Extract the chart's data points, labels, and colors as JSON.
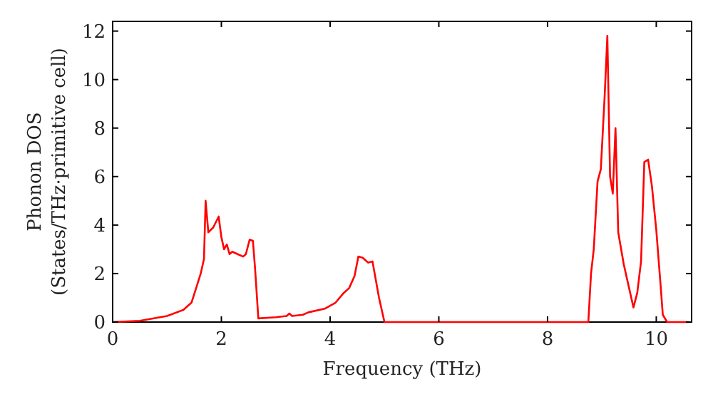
{
  "chart_data": {
    "type": "line",
    "xlabel": "Frequency (THz)",
    "ylabel": "Phonon DOS\n(States/THz·primitive cell)",
    "xlim": [
      0,
      10.65
    ],
    "ylim": [
      0,
      12.4
    ],
    "xticks": [
      0,
      2,
      4,
      6,
      8,
      10
    ],
    "yticks": [
      0,
      2,
      4,
      6,
      8,
      10,
      12
    ],
    "grid": false,
    "series": [
      {
        "color": "#ff0000",
        "x": [
          0,
          0.5,
          1.0,
          1.3,
          1.45,
          1.55,
          1.62,
          1.68,
          1.71,
          1.76,
          1.85,
          1.95,
          2.0,
          2.05,
          2.1,
          2.15,
          2.2,
          2.3,
          2.4,
          2.45,
          2.52,
          2.58,
          2.62,
          2.68,
          3.0,
          3.2,
          3.25,
          3.3,
          3.5,
          3.6,
          3.9,
          4.1,
          4.25,
          4.35,
          4.45,
          4.52,
          4.6,
          4.7,
          4.78,
          4.9,
          5.0,
          8.75,
          8.8,
          8.85,
          8.92,
          8.98,
          9.05,
          9.1,
          9.15,
          9.2,
          9.25,
          9.3,
          9.4,
          9.5,
          9.58,
          9.65,
          9.72,
          9.78,
          9.85,
          9.92,
          10.0,
          10.08,
          10.12,
          10.2,
          10.6
        ],
        "values": [
          0,
          0.05,
          0.25,
          0.5,
          0.8,
          1.5,
          2.0,
          2.6,
          5.0,
          3.7,
          3.9,
          4.35,
          3.5,
          3.0,
          3.2,
          2.8,
          2.9,
          2.8,
          2.7,
          2.8,
          3.4,
          3.35,
          2.2,
          0.15,
          0.2,
          0.25,
          0.35,
          0.25,
          0.3,
          0.4,
          0.55,
          0.8,
          1.2,
          1.4,
          1.9,
          2.7,
          2.65,
          2.45,
          2.5,
          1.0,
          0,
          0,
          2.0,
          3.0,
          5.8,
          6.3,
          9.3,
          11.8,
          6.0,
          5.3,
          8.0,
          3.7,
          2.4,
          1.4,
          0.6,
          1.2,
          2.5,
          6.6,
          6.7,
          5.6,
          3.8,
          1.5,
          0.3,
          0,
          0
        ]
      }
    ]
  }
}
